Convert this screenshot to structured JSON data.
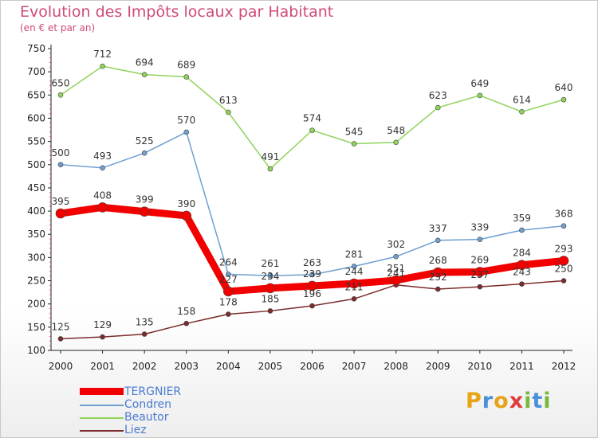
{
  "title": "Evolution des Impôts locaux par Habitant",
  "subtitle": "(en € et par an)",
  "logo": {
    "text": "Proxiti",
    "letters": [
      {
        "ch": "P",
        "color": "#e8a317"
      },
      {
        "ch": "r",
        "color": "#4a8fd9"
      },
      {
        "ch": "o",
        "color": "#e8a317"
      },
      {
        "ch": "x",
        "color": "#e03c3c"
      },
      {
        "ch": "i",
        "color": "#7ab83a"
      },
      {
        "ch": "t",
        "color": "#4a8fd9"
      },
      {
        "ch": "i",
        "color": "#7ab83a"
      }
    ]
  },
  "chart_data": {
    "type": "line",
    "title": "Evolution des Impôts locaux par Habitant",
    "subtitle": "(en € et par an)",
    "x": [
      "2000",
      "2001",
      "2002",
      "2003",
      "2004",
      "2005",
      "2006",
      "2007",
      "2008",
      "2009",
      "2010",
      "2011",
      "2012"
    ],
    "ylim": [
      100,
      750
    ],
    "yticks": [
      100,
      150,
      200,
      250,
      300,
      350,
      400,
      450,
      500,
      550,
      600,
      650,
      700,
      750
    ],
    "grid": false,
    "legend_position": "bottom-left",
    "series": [
      {
        "name": "TERGNIER",
        "color": "#f20000",
        "values": [
          395,
          408,
          399,
          390,
          227,
          234,
          239,
          244,
          251,
          268,
          269,
          284,
          293
        ]
      },
      {
        "name": "Condren",
        "color": "#6fa0d0",
        "values": [
          500,
          493,
          525,
          570,
          264,
          261,
          263,
          281,
          302,
          337,
          339,
          359,
          368
        ]
      },
      {
        "name": "Beautor",
        "color": "#8fd35a",
        "values": [
          650,
          712,
          694,
          689,
          613,
          491,
          574,
          545,
          548,
          623,
          649,
          614,
          640
        ]
      },
      {
        "name": "Liez",
        "color": "#7a2c2c",
        "values": [
          125,
          129,
          135,
          158,
          178,
          185,
          196,
          211,
          241,
          232,
          237,
          243,
          250
        ]
      }
    ]
  }
}
